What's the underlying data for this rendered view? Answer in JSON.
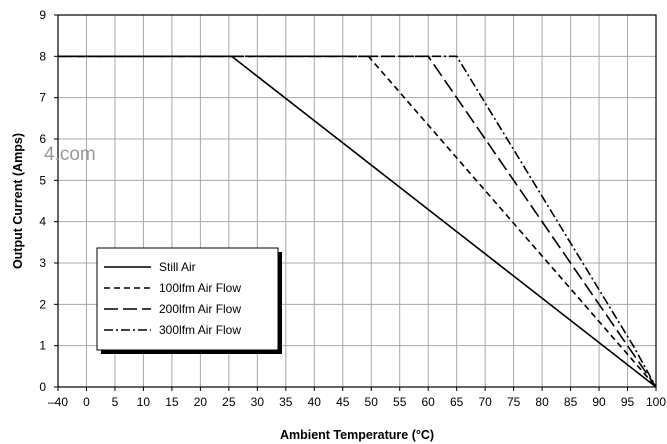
{
  "chart_data": {
    "type": "line",
    "xlabel": "Ambient Temperature (°C)",
    "ylabel": "Output Current (Amps)",
    "x_ticks": [
      "–40",
      "0",
      "5",
      "10",
      "15",
      "20",
      "25",
      "30",
      "35",
      "40",
      "45",
      "50",
      "55",
      "60",
      "65",
      "70",
      "75",
      "80",
      "85",
      "90",
      "95",
      "100"
    ],
    "y_ticks": [
      "0",
      "1",
      "2",
      "3",
      "4",
      "5",
      "6",
      "7",
      "8",
      "9"
    ],
    "ylim": [
      0,
      9
    ],
    "grid": true,
    "legend_position": "bottom-left",
    "series": [
      {
        "name": "Still Air",
        "dash": "solid",
        "points": [
          [
            "–40",
            8
          ],
          [
            "25.5",
            8
          ],
          [
            "100",
            0
          ]
        ]
      },
      {
        "name": "100lfm Air Flow",
        "dash": "dashed",
        "points": [
          [
            "–40",
            8
          ],
          [
            "49.5",
            8
          ],
          [
            "100",
            0
          ]
        ]
      },
      {
        "name": "200lfm Air Flow",
        "dash": "long-dashed",
        "points": [
          [
            "–40",
            8
          ],
          [
            "60",
            8
          ],
          [
            "100",
            0
          ]
        ]
      },
      {
        "name": "300lfm Air Flow",
        "dash": "dash-dot",
        "points": [
          [
            "–40",
            8
          ],
          [
            "65",
            8
          ],
          [
            "96",
            1
          ],
          [
            "100",
            0
          ]
        ]
      }
    ],
    "watermark": "4.com"
  }
}
